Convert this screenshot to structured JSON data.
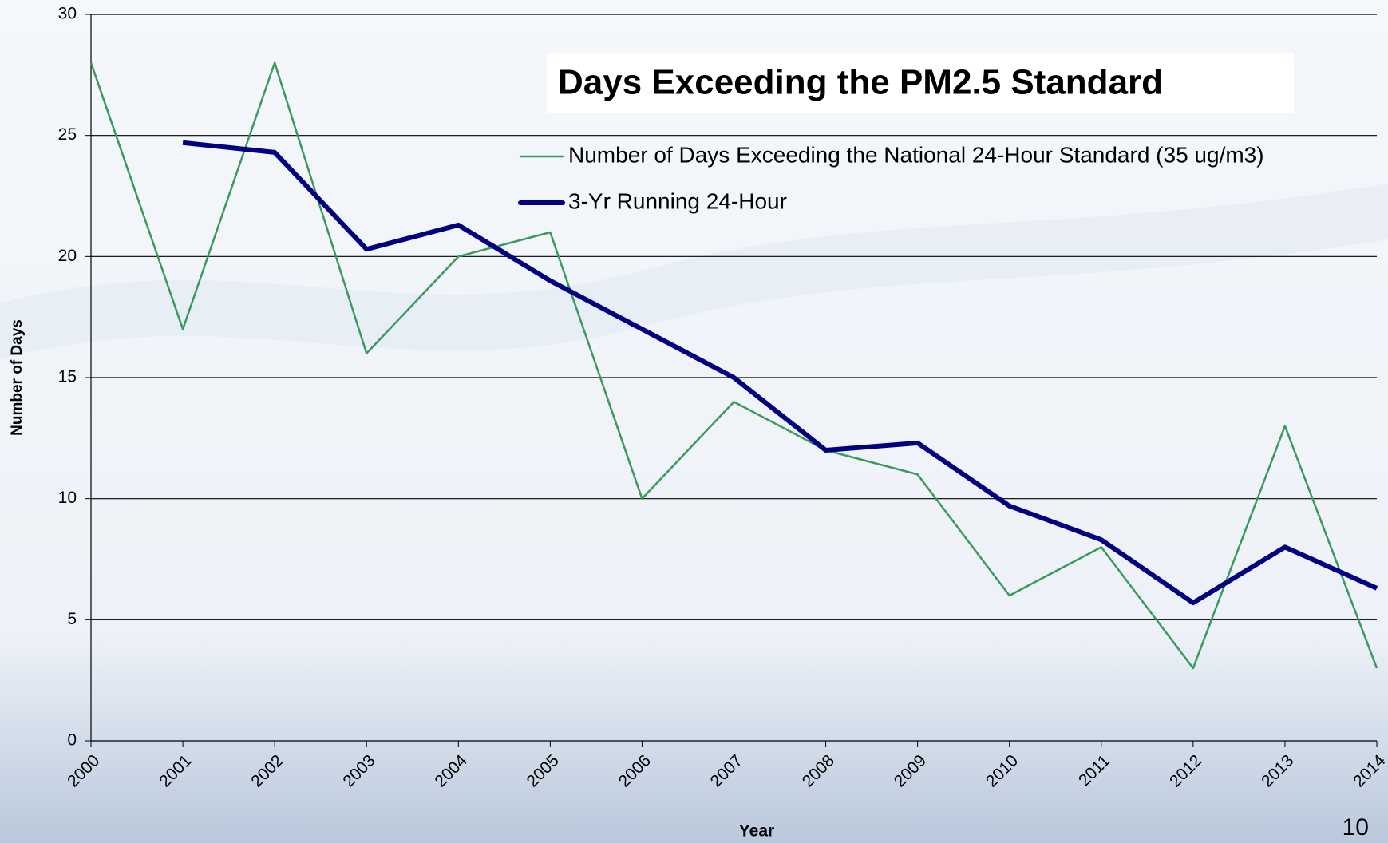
{
  "chart_data": {
    "type": "line",
    "title": "Days Exceeding the PM2.5 Standard",
    "x_label": "Year",
    "y_label": "Number of Days",
    "x": [
      2000,
      2001,
      2002,
      2003,
      2004,
      2005,
      2006,
      2007,
      2008,
      2009,
      2010,
      2011,
      2012,
      2013,
      2014
    ],
    "xlim": [
      2000,
      2014
    ],
    "xticks": [
      2000,
      2001,
      2002,
      2003,
      2004,
      2005,
      2006,
      2007,
      2008,
      2009,
      2010,
      2011,
      2012,
      2013,
      2014
    ],
    "ylim": [
      0,
      30
    ],
    "yticks": [
      0,
      5,
      10,
      15,
      20,
      25,
      30
    ],
    "grid": true,
    "series": [
      {
        "name": "Number of Days Exceeding the National 24-Hour Standard (35 ug/m3)",
        "color": "#3a9a5b",
        "width": 2.5,
        "values": [
          28,
          17,
          28,
          16,
          20,
          21,
          10,
          14,
          12,
          11,
          6,
          8,
          3,
          13,
          3
        ]
      },
      {
        "name": "3-Yr Running 24-Hour",
        "color": "#000080",
        "width": 6,
        "values": [
          null,
          24.7,
          24.3,
          20.3,
          21.3,
          19,
          17,
          15,
          12,
          12.3,
          9.7,
          8.3,
          5.7,
          8,
          6.3
        ]
      }
    ],
    "page_number": "10"
  }
}
